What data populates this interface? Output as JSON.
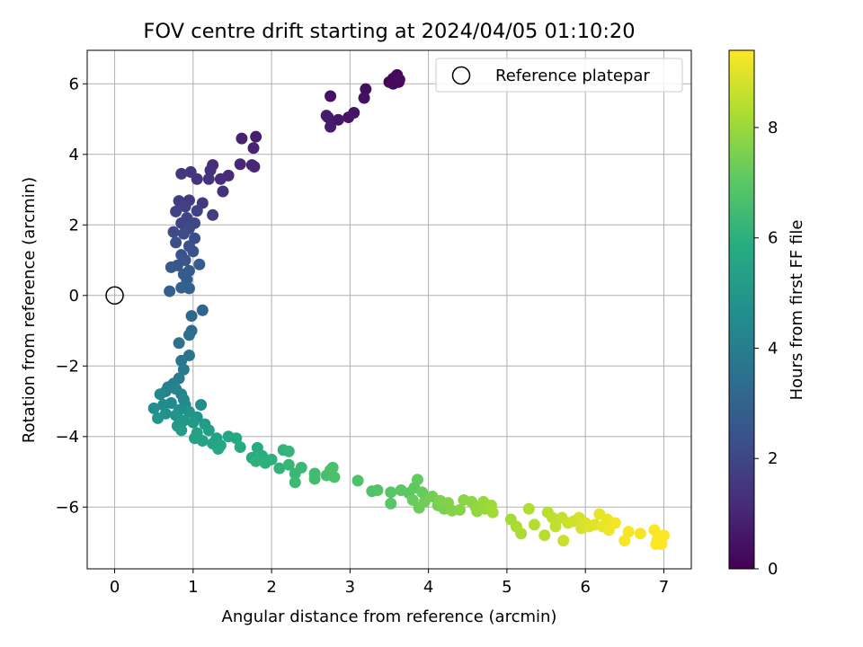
{
  "chart_data": {
    "type": "scatter",
    "title": "FOV centre drift starting at 2024/04/05 01:10:20",
    "xlabel": "Angular distance from reference (arcmin)",
    "ylabel": "Rotation from reference (arcmin)",
    "xlim": [
      -0.35,
      7.35
    ],
    "ylim": [
      -7.75,
      6.95
    ],
    "xticks": [
      0,
      1,
      2,
      3,
      4,
      5,
      6,
      7
    ],
    "yticks": [
      -6,
      -4,
      -2,
      0,
      2,
      4,
      6
    ],
    "grid": true,
    "legend": {
      "position": "top-right",
      "entries": [
        {
          "label": "Reference platepar",
          "marker": "open-circle"
        }
      ]
    },
    "reference_point": {
      "x": 0,
      "y": 0
    },
    "colorbar": {
      "label": "Hours from first FF file",
      "colormap": "viridis",
      "range": [
        0,
        9.4
      ],
      "ticks": [
        0,
        2,
        4,
        6,
        8
      ]
    },
    "series": [
      {
        "color_by": "hours",
        "points": [
          [
            3.55,
            6.15,
            0.0
          ],
          [
            3.6,
            6.25,
            0.05
          ],
          [
            3.5,
            6.05,
            0.1
          ],
          [
            3.62,
            6.05,
            0.15
          ],
          [
            3.58,
            6.2,
            0.2
          ],
          [
            3.55,
            6.0,
            0.25
          ],
          [
            3.63,
            6.12,
            0.3
          ],
          [
            3.2,
            5.85,
            0.35
          ],
          [
            3.18,
            5.6,
            0.4
          ],
          [
            2.75,
            5.65,
            0.45
          ],
          [
            3.05,
            5.18,
            0.5
          ],
          [
            2.98,
            5.05,
            0.55
          ],
          [
            2.85,
            4.98,
            0.6
          ],
          [
            2.72,
            5.05,
            0.65
          ],
          [
            2.75,
            4.78,
            0.7
          ],
          [
            2.7,
            5.1,
            0.75
          ],
          [
            1.8,
            4.5,
            0.85
          ],
          [
            1.62,
            4.45,
            0.9
          ],
          [
            1.77,
            4.18,
            0.95
          ],
          [
            1.75,
            3.7,
            1.0
          ],
          [
            1.6,
            3.72,
            1.05
          ],
          [
            1.78,
            3.65,
            1.1
          ],
          [
            1.45,
            3.4,
            1.15
          ],
          [
            1.25,
            3.7,
            1.2
          ],
          [
            1.35,
            3.3,
            1.25
          ],
          [
            1.22,
            3.55,
            1.3
          ],
          [
            1.38,
            2.95,
            1.35
          ],
          [
            1.2,
            3.3,
            1.4
          ],
          [
            1.05,
            3.3,
            1.45
          ],
          [
            0.97,
            3.5,
            1.5
          ],
          [
            0.85,
            3.45,
            1.55
          ],
          [
            1.12,
            2.62,
            1.6
          ],
          [
            0.95,
            2.7,
            1.65
          ],
          [
            0.82,
            2.68,
            1.7
          ],
          [
            1.25,
            2.28,
            1.75
          ],
          [
            0.9,
            2.52,
            1.8
          ],
          [
            1.05,
            2.4,
            1.85
          ],
          [
            0.78,
            2.38,
            1.9
          ],
          [
            0.92,
            2.2,
            1.95
          ],
          [
            0.85,
            2.05,
            2.0
          ],
          [
            1.02,
            2.05,
            2.05
          ],
          [
            0.95,
            1.9,
            2.1
          ],
          [
            0.75,
            1.8,
            2.15
          ],
          [
            0.88,
            1.75,
            2.2
          ],
          [
            1.02,
            1.62,
            2.25
          ],
          [
            0.78,
            1.5,
            2.3
          ],
          [
            0.95,
            1.4,
            2.35
          ],
          [
            1.0,
            1.25,
            2.4
          ],
          [
            0.85,
            1.15,
            2.45
          ],
          [
            0.9,
            1.0,
            2.5
          ],
          [
            0.8,
            0.85,
            2.55
          ],
          [
            0.72,
            0.8,
            2.6
          ],
          [
            0.95,
            0.7,
            2.65
          ],
          [
            1.08,
            0.88,
            2.7
          ],
          [
            0.88,
            0.6,
            2.75
          ],
          [
            0.92,
            0.45,
            2.8
          ],
          [
            0.85,
            0.22,
            2.85
          ],
          [
            0.95,
            0.2,
            2.9
          ],
          [
            0.7,
            0.12,
            2.95
          ],
          [
            1.12,
            -0.42,
            3.1
          ],
          [
            0.98,
            -0.58,
            3.2
          ],
          [
            0.98,
            -1.0,
            3.3
          ],
          [
            0.95,
            -1.12,
            3.4
          ],
          [
            0.82,
            -1.35,
            3.55
          ],
          [
            0.95,
            -1.7,
            3.65
          ],
          [
            0.85,
            -1.85,
            3.75
          ],
          [
            0.88,
            -2.1,
            3.85
          ],
          [
            0.82,
            -2.35,
            3.95
          ],
          [
            0.75,
            -2.5,
            4.0
          ],
          [
            0.68,
            -2.6,
            4.1
          ],
          [
            0.65,
            -2.72,
            4.2
          ],
          [
            0.78,
            -2.65,
            4.25
          ],
          [
            0.85,
            -2.8,
            4.3
          ],
          [
            0.58,
            -2.8,
            4.35
          ],
          [
            0.88,
            -2.95,
            4.4
          ],
          [
            0.72,
            -3.05,
            4.45
          ],
          [
            0.9,
            -3.1,
            4.5
          ],
          [
            0.62,
            -3.1,
            4.55
          ],
          [
            1.1,
            -3.1,
            4.6
          ],
          [
            0.5,
            -3.2,
            4.65
          ],
          [
            0.82,
            -3.25,
            4.7
          ],
          [
            0.65,
            -3.35,
            4.75
          ],
          [
            0.95,
            -3.3,
            4.8
          ],
          [
            0.78,
            -3.4,
            4.85
          ],
          [
            1.05,
            -3.45,
            4.9
          ],
          [
            0.55,
            -3.48,
            4.95
          ],
          [
            0.88,
            -3.55,
            5.0
          ],
          [
            1.0,
            -3.6,
            5.05
          ],
          [
            0.8,
            -3.7,
            5.1
          ],
          [
            1.15,
            -3.65,
            5.15
          ],
          [
            0.85,
            -3.82,
            5.2
          ],
          [
            1.05,
            -3.9,
            5.25
          ],
          [
            1.2,
            -3.82,
            5.3
          ],
          [
            1.02,
            -4.05,
            5.35
          ],
          [
            1.12,
            -4.12,
            5.4
          ],
          [
            1.3,
            -4.05,
            5.45
          ],
          [
            1.25,
            -4.2,
            5.5
          ],
          [
            1.35,
            -4.25,
            5.55
          ],
          [
            1.45,
            -4.0,
            5.6
          ],
          [
            1.32,
            -4.35,
            5.65
          ],
          [
            1.55,
            -4.05,
            5.7
          ],
          [
            1.6,
            -4.3,
            5.75
          ],
          [
            1.75,
            -4.6,
            5.8
          ],
          [
            1.82,
            -4.32,
            5.85
          ],
          [
            1.88,
            -4.55,
            5.9
          ],
          [
            1.92,
            -4.75,
            5.95
          ],
          [
            2.0,
            -4.65,
            6.0
          ],
          [
            1.8,
            -4.7,
            6.05
          ],
          [
            2.1,
            -4.9,
            6.1
          ],
          [
            2.15,
            -4.38,
            6.15
          ],
          [
            2.22,
            -4.42,
            6.2
          ],
          [
            2.22,
            -4.8,
            6.25
          ],
          [
            2.3,
            -5.05,
            6.3
          ],
          [
            2.38,
            -4.88,
            6.35
          ],
          [
            2.3,
            -5.3,
            6.4
          ],
          [
            2.55,
            -5.05,
            6.45
          ],
          [
            2.55,
            -5.2,
            6.5
          ],
          [
            2.75,
            -4.95,
            6.55
          ],
          [
            2.7,
            -5.1,
            6.6
          ],
          [
            2.78,
            -4.88,
            6.65
          ],
          [
            2.8,
            -5.15,
            6.7
          ],
          [
            3.1,
            -5.25,
            6.75
          ],
          [
            3.28,
            -5.55,
            6.8
          ],
          [
            3.35,
            -5.52,
            6.85
          ],
          [
            3.52,
            -5.58,
            6.9
          ],
          [
            3.52,
            -5.9,
            6.95
          ],
          [
            3.65,
            -5.52,
            7.0
          ],
          [
            3.75,
            -5.6,
            7.05
          ],
          [
            3.82,
            -5.45,
            7.1
          ],
          [
            3.86,
            -5.22,
            7.15
          ],
          [
            3.92,
            -5.58,
            7.2
          ],
          [
            3.8,
            -5.8,
            7.25
          ],
          [
            3.88,
            -6.02,
            7.3
          ],
          [
            3.95,
            -5.85,
            7.35
          ],
          [
            4.05,
            -5.7,
            7.4
          ],
          [
            4.12,
            -5.95,
            7.45
          ],
          [
            4.2,
            -6.05,
            7.5
          ],
          [
            4.15,
            -5.82,
            7.55
          ],
          [
            4.25,
            -5.88,
            7.6
          ],
          [
            4.3,
            -6.1,
            7.65
          ],
          [
            4.4,
            -6.08,
            7.7
          ],
          [
            4.45,
            -5.8,
            7.75
          ],
          [
            4.55,
            -5.85,
            7.8
          ],
          [
            4.6,
            -6.0,
            7.85
          ],
          [
            4.62,
            -6.12,
            7.9
          ],
          [
            4.7,
            -5.85,
            7.95
          ],
          [
            4.72,
            -6.05,
            8.0
          ],
          [
            4.8,
            -5.95,
            8.05
          ],
          [
            4.82,
            -6.15,
            8.1
          ],
          [
            5.05,
            -6.35,
            8.15
          ],
          [
            5.12,
            -6.55,
            8.2
          ],
          [
            5.18,
            -6.75,
            8.25
          ],
          [
            5.28,
            -6.05,
            8.3
          ],
          [
            5.35,
            -6.5,
            8.35
          ],
          [
            5.48,
            -6.8,
            8.4
          ],
          [
            5.52,
            -6.15,
            8.45
          ],
          [
            5.58,
            -6.3,
            8.5
          ],
          [
            5.62,
            -6.55,
            8.55
          ],
          [
            5.7,
            -6.3,
            8.6
          ],
          [
            5.72,
            -6.95,
            8.65
          ],
          [
            5.78,
            -6.45,
            8.7
          ],
          [
            5.85,
            -6.4,
            8.75
          ],
          [
            5.92,
            -6.3,
            8.8
          ],
          [
            5.95,
            -6.6,
            8.85
          ],
          [
            6.0,
            -6.45,
            8.9
          ],
          [
            6.05,
            -6.55,
            8.95
          ],
          [
            6.12,
            -6.5,
            9.0
          ],
          [
            6.18,
            -6.2,
            9.05
          ],
          [
            6.22,
            -6.55,
            9.1
          ],
          [
            6.28,
            -6.35,
            9.15
          ],
          [
            6.3,
            -6.65,
            9.2
          ],
          [
            6.38,
            -6.45,
            9.25
          ],
          [
            6.5,
            -6.95,
            9.28
          ],
          [
            6.55,
            -6.7,
            9.3
          ],
          [
            6.7,
            -6.75,
            9.32
          ],
          [
            6.88,
            -6.65,
            9.34
          ],
          [
            6.92,
            -6.9,
            9.36
          ],
          [
            6.9,
            -7.05,
            9.38
          ],
          [
            6.97,
            -7.05,
            9.39
          ],
          [
            7.0,
            -6.8,
            9.4
          ]
        ]
      }
    ]
  }
}
